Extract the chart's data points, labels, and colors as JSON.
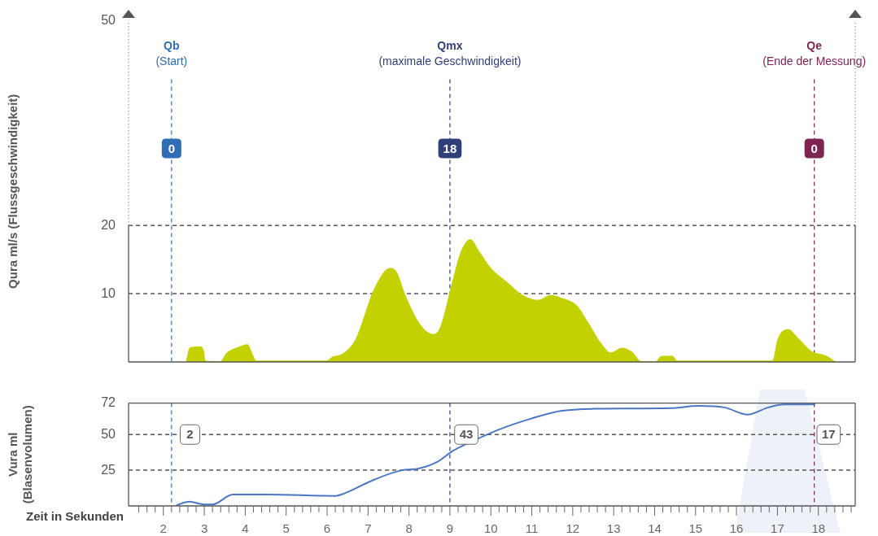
{
  "chart_data": [
    {
      "type": "area",
      "ylabel": "Qura ml/s (Flussgeschwindigkeit)",
      "xlim": [
        1.15,
        18.9
      ],
      "ylim": [
        0,
        50
      ],
      "yticks": [
        10,
        20,
        50
      ],
      "tick_labels": "y",
      "series": [
        {
          "color": "#c3d100",
          "x": [
            2.55,
            2.63,
            2.7,
            2.9,
            2.99,
            3.03,
            3.39,
            3.54,
            3.83,
            4.06,
            4.15,
            4.27,
            5.98,
            6.11,
            6.4,
            6.69,
            7.16,
            7.54,
            7.7,
            7.92,
            8.3,
            8.61,
            8.76,
            9.07,
            9.26,
            9.5,
            9.73,
            10.0,
            10.4,
            10.78,
            11.16,
            11.45,
            11.73,
            12.1,
            12.4,
            12.7,
            12.93,
            13.2,
            13.45,
            13.68,
            14.02,
            14.17,
            14.44,
            14.55,
            16.88,
            17.0,
            17.26,
            17.54,
            17.83,
            18.2,
            18.43
          ],
          "values": [
            0,
            2.0,
            2.2,
            2.3,
            1.6,
            0.2,
            0.1,
            1.3,
            2.2,
            2.6,
            1.6,
            0.2,
            0.2,
            0.7,
            1.3,
            3.3,
            10.9,
            13.8,
            13.2,
            9.7,
            5.3,
            4.1,
            5.1,
            12.1,
            16.1,
            18.0,
            16.1,
            13.8,
            11.7,
            9.8,
            9.1,
            9.8,
            9.4,
            8.3,
            5.6,
            2.7,
            1.4,
            2.1,
            1.5,
            0.1,
            0.1,
            0.9,
            0.9,
            0.2,
            0.2,
            3.3,
            4.8,
            3.3,
            1.6,
            0.9,
            0
          ]
        }
      ],
      "ref_lines": [
        {
          "axis": "x",
          "value": 2.2,
          "label": "Qb\n(Start)",
          "color": "#2f6db5",
          "line_style": "dashed"
        },
        {
          "axis": "x",
          "value": 9.0,
          "label": "Qmx\n(maximale Geschwindigkeit)",
          "color": "#2f3f78",
          "line_style": "dashed"
        },
        {
          "axis": "x",
          "value": 17.9,
          "label": "Qe\n(Ende der Messung)",
          "color": "#7d2453",
          "line_style": "dashed"
        },
        {
          "axis": "y",
          "value": 10,
          "color": "#555555",
          "line_style": "dashed"
        },
        {
          "axis": "y",
          "value": 20,
          "color": "#555555",
          "line_style": "dashed"
        }
      ],
      "annotations": [
        {
          "text": "0",
          "x": 2.2
        },
        {
          "text": "18",
          "x": 9.0
        },
        {
          "text": "0",
          "x": 17.9
        }
      ]
    },
    {
      "type": "line",
      "ylabel": "Vura ml\n(Blasenvolumen)",
      "xlabel": "Zeit in Sekunden",
      "xlim": [
        1.15,
        18.9
      ],
      "ylim": [
        0,
        72
      ],
      "yticks": [
        25,
        50,
        72
      ],
      "xticks": [
        {
          "value": 1.4,
          "label": null
        },
        {
          "value": 1.6,
          "label": null
        },
        {
          "value": 1.8,
          "label": null
        },
        2,
        {
          "value": 2.2,
          "label": null
        },
        {
          "value": 2.4,
          "label": null
        },
        {
          "value": 2.6,
          "label": null
        },
        {
          "value": 2.8,
          "label": null
        },
        3,
        {
          "value": 3.2,
          "label": null
        },
        {
          "value": 3.4,
          "label": null
        },
        {
          "value": 3.6,
          "label": null
        },
        {
          "value": 3.8,
          "label": null
        },
        4,
        {
          "value": 4.2,
          "label": null
        },
        {
          "value": 4.4,
          "label": null
        },
        {
          "value": 4.6,
          "label": null
        },
        {
          "value": 4.8,
          "label": null
        },
        5,
        {
          "value": 5.2,
          "label": null
        },
        {
          "value": 5.4,
          "label": null
        },
        {
          "value": 5.6,
          "label": null
        },
        {
          "value": 5.8,
          "label": null
        },
        6,
        {
          "value": 6.2,
          "label": null
        },
        {
          "value": 6.4,
          "label": null
        },
        {
          "value": 6.6,
          "label": null
        },
        {
          "value": 6.8,
          "label": null
        },
        7,
        {
          "value": 7.2,
          "label": null
        },
        {
          "value": 7.4,
          "label": null
        },
        {
          "value": 7.6,
          "label": null
        },
        {
          "value": 7.8,
          "label": null
        },
        8,
        {
          "value": 8.2,
          "label": null
        },
        {
          "value": 8.4,
          "label": null
        },
        {
          "value": 8.6,
          "label": null
        },
        {
          "value": 8.8,
          "label": null
        },
        9,
        {
          "value": 9.2,
          "label": null
        },
        {
          "value": 9.4,
          "label": null
        },
        {
          "value": 9.6,
          "label": null
        },
        {
          "value": 9.8,
          "label": null
        },
        10,
        {
          "value": 10.2,
          "label": null
        },
        {
          "value": 10.4,
          "label": null
        },
        {
          "value": 10.6,
          "label": null
        },
        {
          "value": 10.8,
          "label": null
        },
        11,
        {
          "value": 11.2,
          "label": null
        },
        {
          "value": 11.4,
          "label": null
        },
        {
          "value": 11.6,
          "label": null
        },
        {
          "value": 11.8,
          "label": null
        },
        12,
        {
          "value": 12.2,
          "label": null
        },
        {
          "value": 12.4,
          "label": null
        },
        {
          "value": 12.6,
          "label": null
        },
        {
          "value": 12.8,
          "label": null
        },
        13,
        {
          "value": 13.2,
          "label": null
        },
        {
          "value": 13.4,
          "label": null
        },
        {
          "value": 13.6,
          "label": null
        },
        {
          "value": 13.8,
          "label": null
        },
        14,
        {
          "value": 14.2,
          "label": null
        },
        {
          "value": 14.4,
          "label": null
        },
        {
          "value": 14.6,
          "label": null
        },
        {
          "value": 14.8,
          "label": null
        },
        15,
        {
          "value": 15.2,
          "label": null
        },
        {
          "value": 15.4,
          "label": null
        },
        {
          "value": 15.6,
          "label": null
        },
        {
          "value": 15.8,
          "label": null
        },
        16,
        {
          "value": 16.2,
          "label": null
        },
        {
          "value": 16.4,
          "label": null
        },
        {
          "value": 16.6,
          "label": null
        },
        {
          "value": 16.8,
          "label": null
        },
        17,
        {
          "value": 17.2,
          "label": null
        },
        {
          "value": 17.4,
          "label": null
        },
        {
          "value": 17.6,
          "label": null
        },
        {
          "value": 17.8,
          "label": null
        },
        18,
        {
          "value": 18.2,
          "label": null
        },
        {
          "value": 18.4,
          "label": null
        },
        {
          "value": 18.6,
          "label": null
        },
        {
          "value": 18.8,
          "label": null
        }
      ],
      "series": [
        {
          "color": "#4a77c4",
          "x": [
            2.32,
            2.63,
            3.0,
            3.2,
            3.7,
            4.5,
            6.2,
            6.4,
            7.16,
            7.83,
            8.2,
            8.7,
            9.07,
            9.45,
            10.2,
            10.97,
            11.7,
            12.5,
            14.4,
            15.07,
            15.7,
            16.27,
            16.78,
            17.16,
            17.92
          ],
          "values": [
            0.5,
            3,
            1,
            1,
            8,
            8,
            7,
            8.5,
            18.5,
            25,
            26,
            31,
            38.5,
            44,
            53.5,
            61,
            66.5,
            68,
            68.5,
            70,
            69,
            64,
            69,
            71,
            71
          ]
        }
      ],
      "ref_lines": [
        {
          "axis": "x",
          "value": 2.2,
          "color": "#2f6db5",
          "line_style": "dashed"
        },
        {
          "axis": "x",
          "value": 9.0,
          "color": "#2f3f78",
          "line_style": "dashed"
        },
        {
          "axis": "x",
          "value": 17.9,
          "color": "#7d2453",
          "line_style": "dashed"
        },
        {
          "axis": "y",
          "value": 25,
          "color": "#555555",
          "line_style": "dashed"
        },
        {
          "axis": "y",
          "value": 50,
          "color": "#555555",
          "line_style": "dashed"
        }
      ],
      "annotations": [
        {
          "text": "2",
          "x": 2.65,
          "y": 50
        },
        {
          "text": "43",
          "x": 9.4,
          "y": 50
        },
        {
          "text": "17",
          "x": 18.25,
          "y": 50
        }
      ]
    }
  ]
}
